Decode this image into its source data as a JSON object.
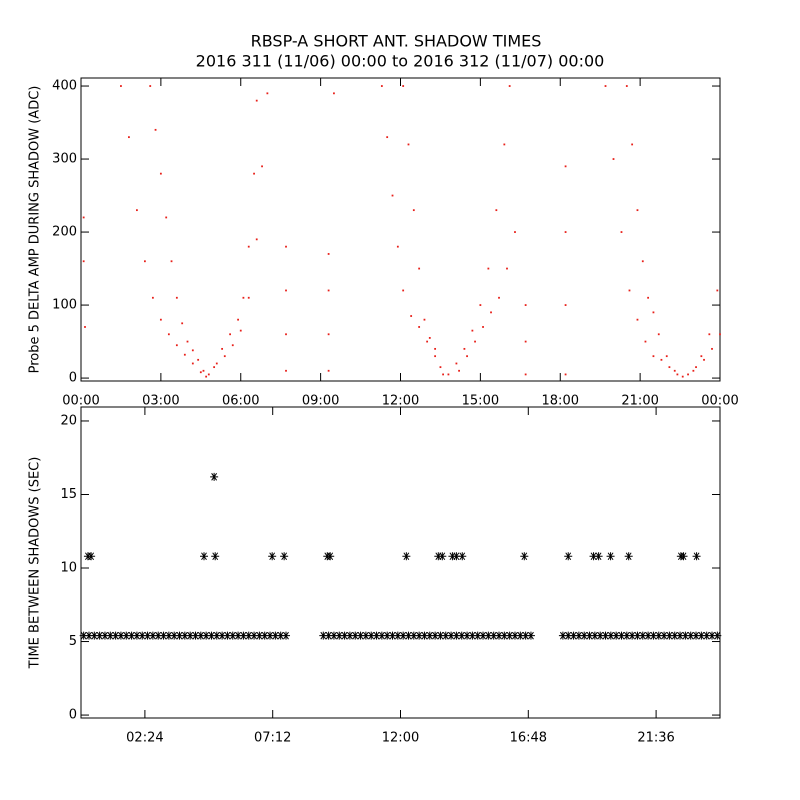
{
  "chart_data": [
    {
      "type": "scatter",
      "title": "RBSP-A SHORT ANT. SHADOW TIMES",
      "subtitle": "2016 311 (11/06) 00:00 to 2016 312 (11/07) 00:00",
      "y_label": "Probe 5 DELTA AMP DURING SHADOW (ADC)",
      "marker": "dot",
      "color": "#e8201a",
      "xlim": [
        0,
        24
      ],
      "xticks": [
        {
          "value": 0,
          "label": "00:00"
        },
        {
          "value": 3,
          "label": "03:00"
        },
        {
          "value": 6,
          "label": "06:00"
        },
        {
          "value": 9,
          "label": "09:00"
        },
        {
          "value": 12,
          "label": "12:00"
        },
        {
          "value": 15,
          "label": "15:00"
        },
        {
          "value": 18,
          "label": "18:00"
        },
        {
          "value": 21,
          "label": "21:00"
        },
        {
          "value": 24,
          "label": "00:00"
        }
      ],
      "ylim": [
        -4,
        411
      ],
      "yticks": [
        0,
        100,
        200,
        300,
        400
      ],
      "x": [
        0.1,
        0.1,
        0.15,
        1.5,
        1.8,
        2.1,
        2.4,
        2.7,
        3.0,
        3.3,
        3.6,
        3.9,
        4.2,
        4.5,
        4.7,
        2.6,
        2.8,
        3.0,
        3.2,
        3.4,
        3.6,
        3.8,
        4.0,
        4.2,
        4.4,
        4.6,
        4.8,
        5.1,
        5.4,
        5.7,
        6.0,
        6.3,
        6.6,
        6.8,
        7.0,
        5.0,
        5.3,
        5.6,
        5.9,
        6.1,
        6.3,
        6.5,
        6.6,
        7.7,
        7.7,
        7.7,
        7.7,
        9.3,
        9.3,
        9.3,
        9.3,
        9.5,
        11.3,
        11.5,
        11.7,
        11.9,
        12.1,
        12.4,
        12.7,
        13.0,
        13.3,
        13.6,
        12.1,
        12.3,
        12.5,
        12.7,
        12.9,
        13.1,
        13.3,
        13.5,
        13.8,
        14.1,
        14.4,
        14.7,
        15.0,
        15.3,
        15.6,
        15.9,
        16.1,
        14.2,
        14.5,
        14.8,
        15.1,
        15.4,
        15.7,
        16.0,
        16.3,
        16.7,
        16.7,
        16.7,
        18.2,
        18.2,
        18.2,
        18.2,
        19.7,
        20.0,
        20.3,
        20.6,
        20.9,
        21.2,
        21.5,
        21.8,
        22.1,
        22.4,
        20.5,
        20.7,
        20.9,
        21.1,
        21.3,
        21.5,
        21.7,
        22.0,
        22.3,
        22.6,
        22.8,
        23.1,
        23.4,
        23.7,
        24,
        23.0,
        23.3,
        23.6,
        23.9
      ],
      "values": [
        220,
        160,
        70,
        400,
        330,
        230,
        160,
        110,
        80,
        60,
        45,
        32,
        20,
        8,
        2,
        400,
        340,
        280,
        220,
        160,
        110,
        75,
        50,
        38,
        25,
        10,
        5,
        20,
        30,
        45,
        65,
        110,
        190,
        290,
        390,
        15,
        40,
        60,
        80,
        110,
        180,
        280,
        380,
        10,
        60,
        120,
        180,
        10,
        60,
        120,
        170,
        390,
        400,
        330,
        250,
        180,
        120,
        85,
        70,
        50,
        30,
        5,
        400,
        320,
        230,
        150,
        80,
        55,
        40,
        15,
        5,
        20,
        40,
        65,
        100,
        150,
        230,
        320,
        400,
        10,
        30,
        50,
        70,
        90,
        110,
        150,
        200,
        5,
        50,
        100,
        5,
        100,
        200,
        290,
        400,
        300,
        200,
        120,
        80,
        50,
        30,
        25,
        15,
        5,
        400,
        320,
        230,
        160,
        110,
        90,
        60,
        30,
        10,
        2,
        5,
        15,
        25,
        40,
        60,
        10,
        30,
        60,
        120
      ]
    },
    {
      "type": "scatter",
      "y_label": "TIME BETWEEN SHADOWS (SEC)",
      "marker": "asterisk",
      "color": "#000000",
      "xlim": [
        0,
        24
      ],
      "xticks": [
        {
          "value": 2.4,
          "label": "02:24"
        },
        {
          "value": 7.2,
          "label": "07:12"
        },
        {
          "value": 12,
          "label": "12:00"
        },
        {
          "value": 16.8,
          "label": "16:48"
        },
        {
          "value": 21.6,
          "label": "21:36"
        }
      ],
      "ylim": [
        -0.2,
        20.95
      ],
      "yticks": [
        0,
        5,
        10,
        15,
        20
      ],
      "x": [
        0.1,
        0.3,
        0.5,
        0.7,
        0.9,
        1.1,
        1.3,
        1.5,
        1.7,
        1.9,
        2.1,
        2.3,
        2.5,
        2.7,
        2.9,
        3.1,
        3.3,
        3.5,
        3.7,
        3.9,
        4.1,
        4.3,
        4.5,
        4.7,
        4.9,
        5.1,
        5.3,
        5.5,
        5.7,
        5.9,
        6.1,
        6.3,
        6.5,
        6.7,
        6.9,
        7.1,
        7.3,
        7.5,
        7.7,
        9.1,
        9.3,
        9.5,
        9.7,
        9.9,
        10.1,
        10.3,
        10.5,
        10.7,
        10.9,
        11.1,
        11.3,
        11.5,
        11.7,
        11.9,
        12.1,
        12.3,
        12.5,
        12.7,
        12.9,
        13.1,
        13.3,
        13.5,
        13.7,
        13.9,
        14.1,
        14.3,
        14.5,
        14.7,
        14.9,
        15.1,
        15.3,
        15.5,
        15.7,
        15.9,
        16.1,
        16.3,
        16.5,
        16.7,
        16.9,
        18.1,
        18.3,
        18.5,
        18.7,
        18.9,
        19.1,
        19.3,
        19.5,
        19.7,
        19.9,
        20.1,
        20.3,
        20.5,
        20.7,
        20.9,
        21.1,
        21.3,
        21.5,
        21.7,
        21.9,
        22.1,
        22.3,
        22.5,
        22.7,
        22.9,
        23.1,
        23.3,
        23.5,
        23.7,
        23.9,
        0.26,
        0.38,
        4.62,
        5.04,
        7.18,
        7.63,
        9.25,
        9.36,
        12.22,
        13.42,
        13.57,
        13.95,
        14.1,
        14.32,
        16.65,
        18.3,
        19.25,
        19.44,
        19.89,
        20.57,
        22.53,
        22.63,
        23.12,
        5.0
      ],
      "values": [
        5.4,
        5.4,
        5.4,
        5.4,
        5.4,
        5.4,
        5.4,
        5.4,
        5.4,
        5.4,
        5.4,
        5.4,
        5.4,
        5.4,
        5.4,
        5.4,
        5.4,
        5.4,
        5.4,
        5.4,
        5.4,
        5.4,
        5.4,
        5.4,
        5.4,
        5.4,
        5.4,
        5.4,
        5.4,
        5.4,
        5.4,
        5.4,
        5.4,
        5.4,
        5.4,
        5.4,
        5.4,
        5.4,
        5.4,
        5.4,
        5.4,
        5.4,
        5.4,
        5.4,
        5.4,
        5.4,
        5.4,
        5.4,
        5.4,
        5.4,
        5.4,
        5.4,
        5.4,
        5.4,
        5.4,
        5.4,
        5.4,
        5.4,
        5.4,
        5.4,
        5.4,
        5.4,
        5.4,
        5.4,
        5.4,
        5.4,
        5.4,
        5.4,
        5.4,
        5.4,
        5.4,
        5.4,
        5.4,
        5.4,
        5.4,
        5.4,
        5.4,
        5.4,
        5.4,
        5.4,
        5.4,
        5.4,
        5.4,
        5.4,
        5.4,
        5.4,
        5.4,
        5.4,
        5.4,
        5.4,
        5.4,
        5.4,
        5.4,
        5.4,
        5.4,
        5.4,
        5.4,
        5.4,
        5.4,
        5.4,
        5.4,
        5.4,
        5.4,
        5.4,
        5.4,
        5.4,
        5.4,
        5.4,
        5.4,
        10.8,
        10.8,
        10.8,
        10.8,
        10.8,
        10.8,
        10.8,
        10.8,
        10.8,
        10.8,
        10.8,
        10.8,
        10.8,
        10.8,
        10.8,
        10.8,
        10.8,
        10.8,
        10.8,
        10.8,
        10.8,
        10.8,
        10.8,
        16.2
      ]
    }
  ]
}
